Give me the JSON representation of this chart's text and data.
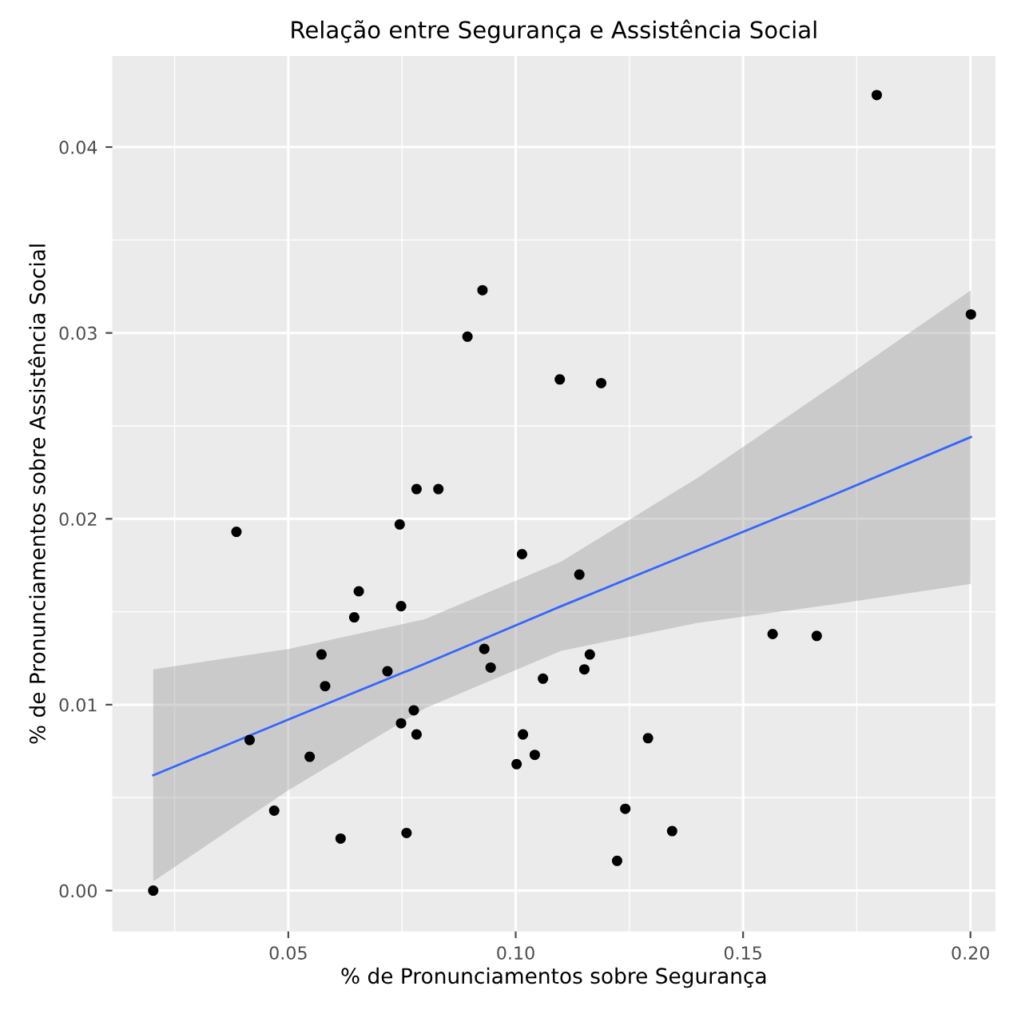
{
  "chart_data": {
    "type": "scatter",
    "title": "Relação entre Segurança e Assistência Social",
    "xlabel": "% de Pronunciamentos sobre Segurança",
    "ylabel": "% de Pronunciamentos sobre Assistência Social",
    "x": [
      0.0203,
      0.0386,
      0.0415,
      0.0469,
      0.0547,
      0.0573,
      0.0581,
      0.0615,
      0.0645,
      0.0655,
      0.0718,
      0.0745,
      0.0748,
      0.0748,
      0.076,
      0.0776,
      0.0782,
      0.0782,
      0.083,
      0.0894,
      0.0927,
      0.0931,
      0.0945,
      0.1002,
      0.1014,
      0.1016,
      0.1042,
      0.106,
      0.1097,
      0.114,
      0.1151,
      0.1163,
      0.1188,
      0.1223,
      0.1241,
      0.1291,
      0.1344,
      0.1565,
      0.1662,
      0.1794,
      0.2001
    ],
    "series": [
      {
        "color": "#000000",
        "marker": "circle",
        "values": [
          0.0,
          0.0193,
          0.0081,
          0.0043,
          0.0072,
          0.0127,
          0.011,
          0.0028,
          0.0147,
          0.0161,
          0.0118,
          0.0197,
          0.0153,
          0.009,
          0.0031,
          0.0097,
          0.0216,
          0.0084,
          0.0216,
          0.0298,
          0.0323,
          0.013,
          0.012,
          0.0068,
          0.0181,
          0.0084,
          0.0073,
          0.0114,
          0.0275,
          0.017,
          0.0119,
          0.0127,
          0.0273,
          0.0016,
          0.0044,
          0.0082,
          0.0032,
          0.0138,
          0.0137,
          0.0428,
          0.031
        ]
      },
      {
        "type": "line",
        "color": "#3366ff",
        "marker": "none",
        "line_style": "solid",
        "x": [
          0.0203,
          0.05,
          0.08,
          0.11,
          0.14,
          0.17,
          0.2001
        ],
        "values": [
          0.0062,
          0.0092,
          0.0122,
          0.0153,
          0.0183,
          0.0213,
          0.0244
        ],
        "lower": [
          0.0005,
          0.0054,
          0.0098,
          0.0129,
          0.0144,
          0.0154,
          0.0165
        ],
        "upper": [
          0.0119,
          0.013,
          0.0146,
          0.0177,
          0.0222,
          0.0272,
          0.0323
        ]
      }
    ],
    "xlim": [
      0.0113,
      0.2055
    ],
    "ylim": [
      -0.0022,
      0.0449
    ],
    "xticks": [
      {
        "value": 0.05,
        "label": "0.05"
      },
      {
        "value": 0.1,
        "label": "0.10"
      },
      {
        "value": 0.15,
        "label": "0.15"
      },
      {
        "value": 0.2,
        "label": "0.20"
      }
    ],
    "yticks": [
      {
        "value": 0.0,
        "label": "0.00"
      },
      {
        "value": 0.01,
        "label": "0.01"
      },
      {
        "value": 0.02,
        "label": "0.02"
      },
      {
        "value": 0.03,
        "label": "0.03"
      },
      {
        "value": 0.04,
        "label": "0.04"
      }
    ],
    "grid": true
  }
}
